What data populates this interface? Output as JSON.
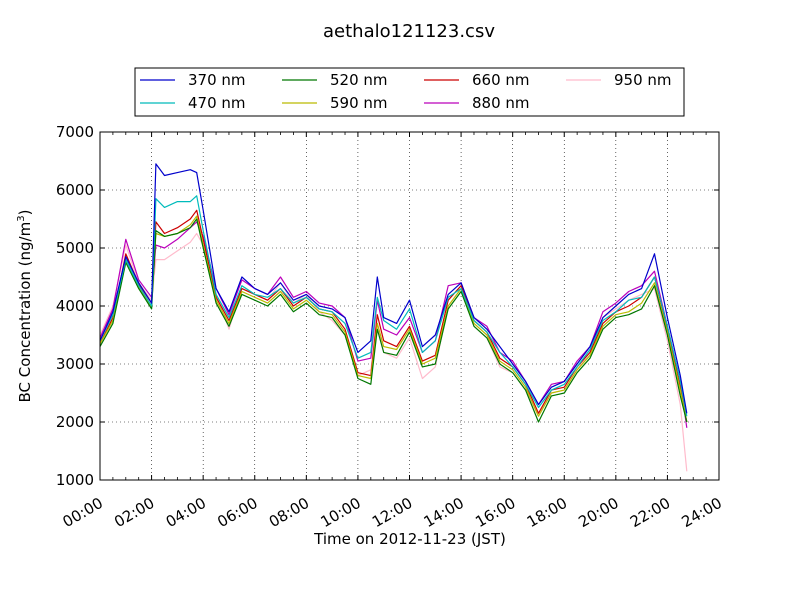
{
  "chart_data": {
    "type": "line",
    "title": "aethalo121123.csv",
    "xlabel": "Time on 2012-11-23 (JST)",
    "ylabel": "BC Concentration (ng/m³)",
    "ylabel_main": "BC Concentration (ng/m",
    "ylabel_sup": "3",
    "ylabel_tail": ")",
    "xlim": [
      "00:00",
      "24:00"
    ],
    "ylim": [
      1000,
      7000
    ],
    "x_ticks": [
      "00:00",
      "02:00",
      "04:00",
      "06:00",
      "08:00",
      "10:00",
      "12:00",
      "14:00",
      "16:00",
      "18:00",
      "20:00",
      "22:00",
      "24:00"
    ],
    "y_ticks": [
      "1000",
      "2000",
      "3000",
      "4000",
      "5000",
      "6000",
      "7000"
    ],
    "grid": true,
    "legend_position": "top-center",
    "x": [
      "00:00",
      "00:30",
      "01:00",
      "01:30",
      "02:00",
      "02:10",
      "02:30",
      "03:00",
      "03:30",
      "03:45",
      "04:00",
      "04:30",
      "05:00",
      "05:30",
      "06:00",
      "06:30",
      "07:00",
      "07:30",
      "08:00",
      "08:30",
      "09:00",
      "09:30",
      "10:00",
      "10:30",
      "10:45",
      "11:00",
      "11:30",
      "12:00",
      "12:30",
      "13:00",
      "13:30",
      "14:00",
      "14:30",
      "15:00",
      "15:30",
      "16:00",
      "16:30",
      "17:00",
      "17:30",
      "18:00",
      "18:30",
      "19:00",
      "19:30",
      "20:00",
      "20:30",
      "21:00",
      "21:30",
      "22:00",
      "22:30",
      "22:45"
    ],
    "series": [
      {
        "name": "370 nm",
        "color": "#0000cc",
        "values": [
          3400,
          3900,
          4850,
          4400,
          4050,
          6450,
          6250,
          6300,
          6350,
          6300,
          5650,
          4300,
          3900,
          4500,
          4300,
          4200,
          4400,
          4100,
          4200,
          4000,
          3950,
          3800,
          3200,
          3400,
          4500,
          3800,
          3700,
          4100,
          3300,
          3500,
          4200,
          4400,
          3800,
          3600,
          3300,
          3000,
          2700,
          2300,
          2600,
          2700,
          3000,
          3300,
          3800,
          4000,
          4200,
          4300,
          4900,
          3800,
          2800,
          2150
        ]
      },
      {
        "name": "470 nm",
        "color": "#00bbbb",
        "values": [
          3400,
          3850,
          4800,
          4350,
          4000,
          5850,
          5700,
          5800,
          5800,
          5900,
          5300,
          4200,
          3800,
          4350,
          4200,
          4150,
          4300,
          4050,
          4150,
          3950,
          3900,
          3700,
          3100,
          3200,
          4150,
          3750,
          3600,
          3950,
          3200,
          3400,
          4150,
          4300,
          3750,
          3550,
          3200,
          2950,
          2650,
          2250,
          2550,
          2650,
          2950,
          3250,
          3750,
          3900,
          4100,
          4150,
          4500,
          3650,
          2700,
          2100
        ]
      },
      {
        "name": "520 nm",
        "color": "#007700",
        "values": [
          3300,
          3700,
          4750,
          4300,
          3950,
          5300,
          5200,
          5250,
          5350,
          5500,
          5000,
          4050,
          3650,
          4200,
          4100,
          4000,
          4200,
          3900,
          4050,
          3850,
          3800,
          3500,
          2750,
          2650,
          3600,
          3200,
          3150,
          3550,
          2950,
          3000,
          3950,
          4250,
          3650,
          3450,
          3000,
          2850,
          2550,
          2000,
          2450,
          2500,
          2850,
          3100,
          3600,
          3800,
          3850,
          3950,
          4350,
          3500,
          2450,
          2000
        ]
      },
      {
        "name": "590 nm",
        "color": "#bbbb00",
        "values": [
          3350,
          3750,
          4800,
          4320,
          3980,
          5250,
          5200,
          5250,
          5400,
          5550,
          5050,
          4100,
          3700,
          4250,
          4150,
          4050,
          4250,
          3950,
          4100,
          3900,
          3850,
          3550,
          2800,
          2750,
          3700,
          3300,
          3250,
          3600,
          3000,
          3100,
          4000,
          4300,
          3700,
          3500,
          3050,
          2900,
          2600,
          2100,
          2500,
          2550,
          2900,
          3150,
          3650,
          3850,
          3900,
          4050,
          4400,
          3550,
          2550,
          2000
        ]
      },
      {
        "name": "660 nm",
        "color": "#cc0000",
        "values": [
          3350,
          3800,
          4900,
          4380,
          4050,
          5450,
          5250,
          5350,
          5500,
          5650,
          5150,
          4150,
          3750,
          4300,
          4200,
          4100,
          4300,
          4000,
          4150,
          3950,
          3900,
          3600,
          2850,
          2800,
          3850,
          3400,
          3300,
          3650,
          3050,
          3150,
          4100,
          4350,
          3750,
          3550,
          3100,
          2950,
          2650,
          2150,
          2550,
          2600,
          2950,
          3200,
          3700,
          3900,
          4000,
          4150,
          4500,
          3600,
          2600,
          2000
        ]
      },
      {
        "name": "880 nm",
        "color": "#bb00bb",
        "values": [
          3450,
          3950,
          5150,
          4450,
          4150,
          5050,
          5000,
          5150,
          5350,
          5450,
          5200,
          4300,
          3850,
          4450,
          4300,
          4200,
          4500,
          4150,
          4250,
          4050,
          4000,
          3800,
          3050,
          3100,
          4100,
          3600,
          3500,
          3800,
          3200,
          3400,
          4350,
          4400,
          3800,
          3650,
          3200,
          3050,
          2700,
          2300,
          2650,
          2700,
          3050,
          3300,
          3900,
          4050,
          4250,
          4350,
          4600,
          3650,
          2700,
          1900
        ]
      },
      {
        "name": "950 nm",
        "color": "#ffbbcc",
        "values": [
          3500,
          4000,
          5050,
          4400,
          4100,
          4800,
          4800,
          4950,
          5100,
          5250,
          5050,
          4200,
          3600,
          4350,
          4200,
          4100,
          4400,
          4050,
          4200,
          3900,
          3750,
          3500,
          2800,
          2900,
          3700,
          3200,
          3100,
          3450,
          2750,
          2950,
          4000,
          4300,
          3650,
          3450,
          2950,
          2850,
          2550,
          2100,
          2500,
          2550,
          2900,
          3200,
          3800,
          3950,
          4100,
          4200,
          4300,
          3400,
          2300,
          1150
        ]
      }
    ]
  }
}
